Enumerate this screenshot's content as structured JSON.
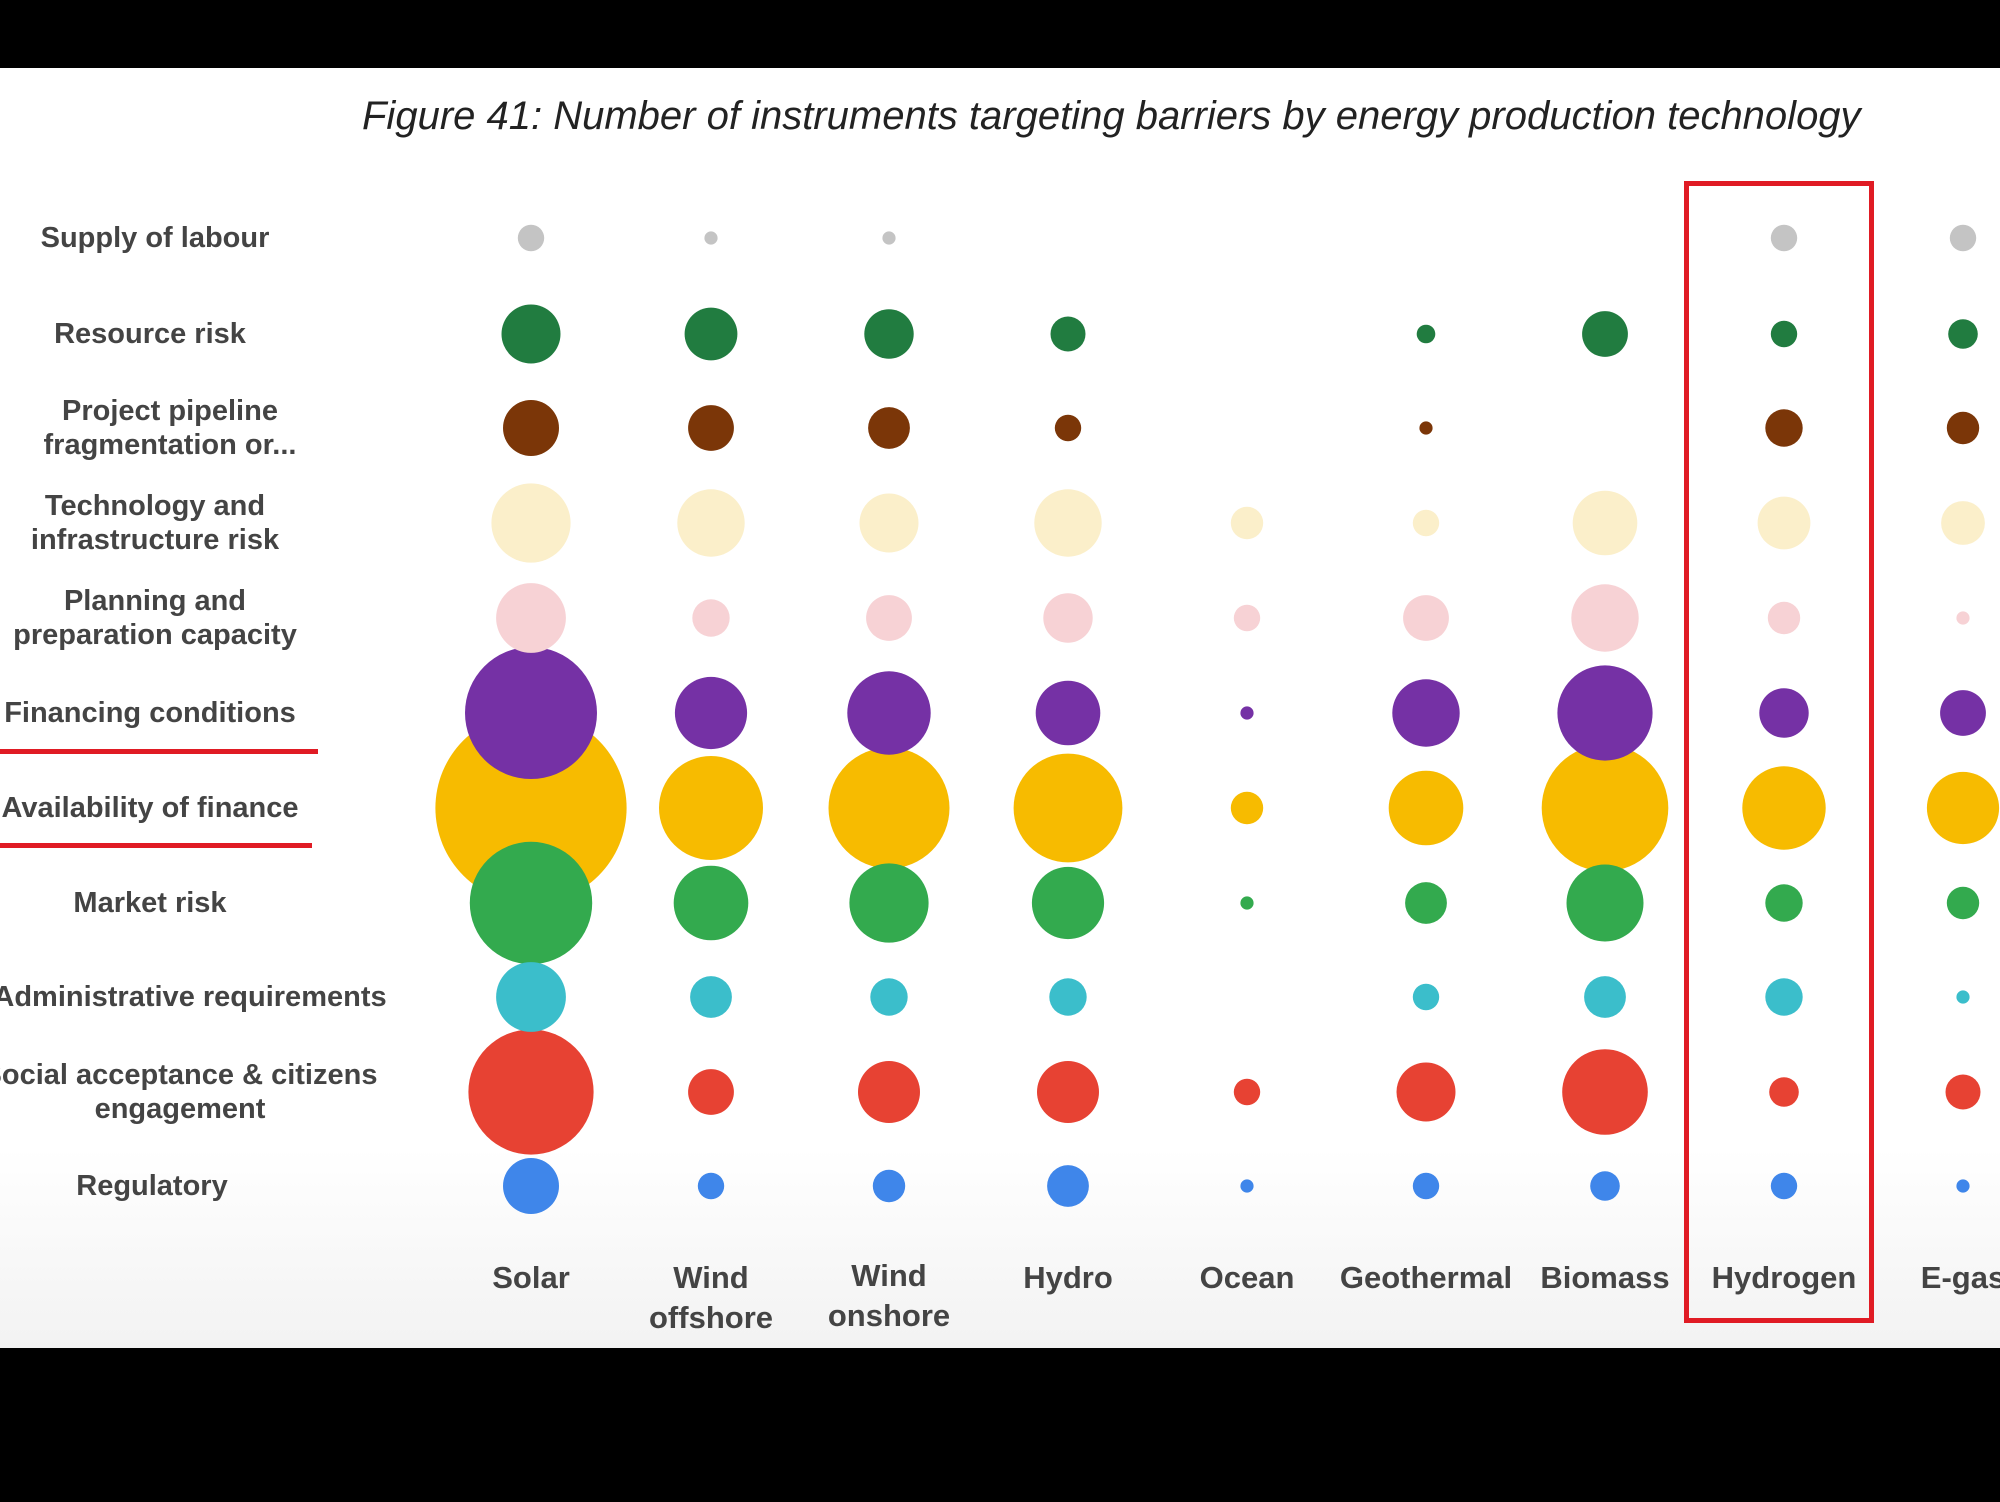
{
  "chart_data": {
    "type": "bubble",
    "title": "Figure 41: Number of instruments targeting barriers by energy production technology",
    "categories": [
      "Solar",
      "Wind offshore",
      "Wind onshore",
      "Hydro",
      "Ocean",
      "Geothermal",
      "Biomass",
      "Hydrogen",
      "E-gas"
    ],
    "category_labels": [
      "Solar",
      "Wind\noffshore",
      "Wind\nonshore",
      "Hydro",
      "Ocean",
      "Geothermal",
      "Biomass",
      "Hydrogen",
      "E-gas"
    ],
    "highlighted_category": "Hydrogen",
    "underlined_rows": [
      "Financing conditions",
      "Availability of finance"
    ],
    "value_note_scale": "relative bubble size",
    "series": [
      {
        "name": "Supply of labour",
        "label": "Supply of labour",
        "color": "#c4c4c4",
        "values": [
          4,
          1,
          1,
          0,
          0,
          0,
          0,
          4,
          4
        ]
      },
      {
        "name": "Resource risk",
        "label": "Resource risk",
        "color": "#217c40",
        "values": [
          20,
          16,
          14,
          7,
          0,
          2,
          12,
          4,
          5
        ]
      },
      {
        "name": "Project pipeline fragmentation or...",
        "label": "Project pipeline\nfragmentation or...",
        "color": "#7b3608",
        "values": [
          18,
          12,
          10,
          4,
          0,
          1,
          0,
          8,
          6
        ]
      },
      {
        "name": "Technology and infrastructure risk",
        "label": "Technology and\ninfrastructure risk",
        "color": "#fbefca",
        "values": [
          36,
          26,
          20,
          26,
          6,
          4,
          24,
          16,
          11
        ]
      },
      {
        "name": "Planning and preparation capacity",
        "label": "Planning and\npreparation capacity",
        "color": "#f7d2d5",
        "values": [
          28,
          8,
          12,
          14,
          4,
          12,
          26,
          6,
          1
        ]
      },
      {
        "name": "Financing conditions",
        "label": "Financing conditions",
        "color": "#7531a5",
        "values": [
          100,
          30,
          40,
          24,
          1,
          26,
          52,
          14,
          12
        ]
      },
      {
        "name": "Availability of finance",
        "label": "Availability of finance",
        "color": "#f7bb00",
        "values": [
          210,
          62,
          84,
          68,
          6,
          32,
          92,
          40,
          30
        ]
      },
      {
        "name": "Market risk",
        "label": "Market risk",
        "color": "#33aa4e",
        "values": [
          86,
          32,
          36,
          30,
          1,
          10,
          34,
          8,
          6
        ]
      },
      {
        "name": "Administrative requirements",
        "label": "Administrative requirements",
        "color": "#3bbecb",
        "values": [
          28,
          10,
          8,
          8,
          0,
          4,
          10,
          8,
          1
        ]
      },
      {
        "name": "Social acceptance & citizens engagement",
        "label": "Social acceptance & citizens\nengagement",
        "color": "#e74233",
        "values": [
          90,
          12,
          22,
          22,
          4,
          20,
          42,
          5,
          7
        ]
      },
      {
        "name": "Regulatory",
        "label": "Regulatory",
        "color": "#3f86ea",
        "values": [
          18,
          4,
          6,
          10,
          1,
          4,
          5,
          4,
          1
        ]
      }
    ]
  }
}
